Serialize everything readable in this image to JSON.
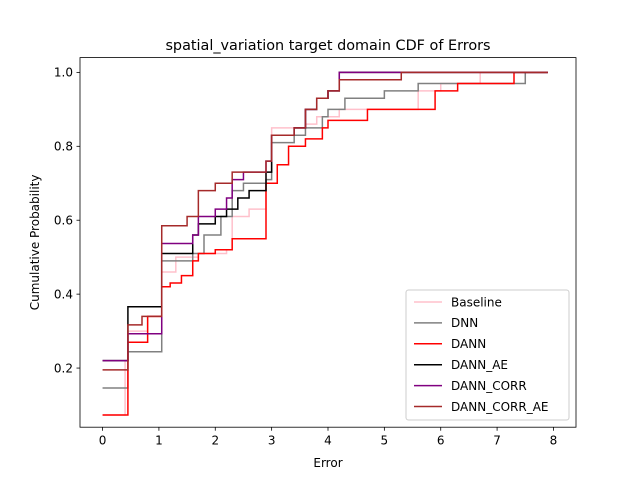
{
  "chart_data": {
    "type": "line",
    "title": "spatial_variation target domain CDF of Errors",
    "xlabel": "Error",
    "ylabel": "Cumulative Probability",
    "xlim": [
      -0.4,
      8.4
    ],
    "ylim": [
      0.04,
      1.04
    ],
    "xticks": [
      0,
      1,
      2,
      3,
      4,
      5,
      6,
      7,
      8
    ],
    "yticks": [
      0.2,
      0.4,
      0.6,
      0.8,
      1.0
    ],
    "xtick_labels": [
      "0",
      "1",
      "2",
      "3",
      "4",
      "5",
      "6",
      "7",
      "8"
    ],
    "ytick_labels": [
      "0.2",
      "0.4",
      "0.6",
      "0.8",
      "1.0"
    ],
    "grid": false,
    "legend_position": "lower-right",
    "series": [
      {
        "name": "Baseline",
        "color": "#ffc0cb",
        "step": true,
        "x": [
          0.0,
          0.4,
          0.45,
          0.8,
          1.05,
          1.3,
          1.6,
          1.7,
          2.2,
          2.3,
          2.6,
          2.9,
          3.0,
          3.4,
          3.6,
          3.8,
          4.2,
          4.8,
          5.3,
          5.6,
          6.0,
          6.3,
          6.7,
          7.9
        ],
        "y": [
          0.073,
          0.22,
          0.3,
          0.34,
          0.46,
          0.5,
          0.5,
          0.51,
          0.52,
          0.61,
          0.63,
          0.73,
          0.85,
          0.85,
          0.86,
          0.88,
          0.9,
          0.9,
          0.9,
          0.95,
          0.97,
          0.97,
          1.0,
          1.0
        ]
      },
      {
        "name": "DNN",
        "color": "#808080",
        "step": true,
        "x": [
          0.0,
          0.4,
          0.45,
          1.0,
          1.05,
          1.6,
          1.8,
          2.1,
          2.3,
          2.5,
          2.9,
          3.0,
          3.4,
          3.6,
          3.9,
          4.0,
          4.3,
          4.5,
          5.0,
          5.4,
          5.6,
          6.0,
          7.5,
          7.9
        ],
        "y": [
          0.146,
          0.146,
          0.244,
          0.244,
          0.49,
          0.51,
          0.56,
          0.61,
          0.68,
          0.7,
          0.71,
          0.81,
          0.83,
          0.85,
          0.88,
          0.9,
          0.93,
          0.93,
          0.95,
          0.95,
          0.97,
          0.97,
          1.0,
          1.0
        ]
      },
      {
        "name": "DANN",
        "color": "#ff0000",
        "step": true,
        "x": [
          0.0,
          0.45,
          0.8,
          1.05,
          1.2,
          1.4,
          1.6,
          1.7,
          2.0,
          2.3,
          2.8,
          2.9,
          3.1,
          3.3,
          3.6,
          3.9,
          4.0,
          4.3,
          4.7,
          5.3,
          5.9,
          6.3,
          7.3,
          7.9
        ],
        "y": [
          0.073,
          0.27,
          0.34,
          0.42,
          0.43,
          0.45,
          0.49,
          0.51,
          0.52,
          0.55,
          0.55,
          0.7,
          0.75,
          0.8,
          0.82,
          0.85,
          0.87,
          0.87,
          0.9,
          0.9,
          0.95,
          0.97,
          1.0,
          1.0
        ]
      },
      {
        "name": "DANN_AE",
        "color": "#000000",
        "step": true,
        "x": [
          0.0,
          0.45,
          1.0,
          1.05,
          1.6,
          1.7,
          2.0,
          2.2,
          2.4,
          2.6,
          2.9,
          3.0,
          3.4,
          3.6,
          3.8,
          4.0,
          4.2,
          7.9
        ],
        "y": [
          0.22,
          0.366,
          0.366,
          0.51,
          0.56,
          0.59,
          0.61,
          0.63,
          0.66,
          0.68,
          0.73,
          0.83,
          0.85,
          0.9,
          0.93,
          0.95,
          1.0,
          1.0
        ]
      },
      {
        "name": "DANN_CORR",
        "color": "#800080",
        "step": true,
        "x": [
          0.0,
          0.45,
          1.0,
          1.05,
          1.6,
          1.7,
          2.0,
          2.2,
          2.3,
          2.5,
          2.6,
          2.9,
          3.0,
          3.4,
          3.6,
          3.8,
          4.0,
          4.2,
          7.9
        ],
        "y": [
          0.22,
          0.293,
          0.293,
          0.537,
          0.56,
          0.61,
          0.63,
          0.66,
          0.71,
          0.73,
          0.73,
          0.76,
          0.83,
          0.85,
          0.9,
          0.93,
          0.95,
          1.0,
          1.0
        ]
      },
      {
        "name": "DANN_CORR_AE",
        "color": "#a52a2a",
        "step": true,
        "x": [
          0.0,
          0.45,
          0.7,
          1.0,
          1.05,
          1.5,
          1.7,
          2.0,
          2.3,
          2.6,
          2.9,
          3.0,
          3.4,
          3.6,
          3.8,
          4.0,
          4.2,
          5.3,
          7.9
        ],
        "y": [
          0.195,
          0.317,
          0.34,
          0.34,
          0.585,
          0.61,
          0.68,
          0.7,
          0.73,
          0.73,
          0.76,
          0.83,
          0.85,
          0.9,
          0.93,
          0.95,
          0.98,
          1.0,
          1.0
        ]
      }
    ]
  }
}
